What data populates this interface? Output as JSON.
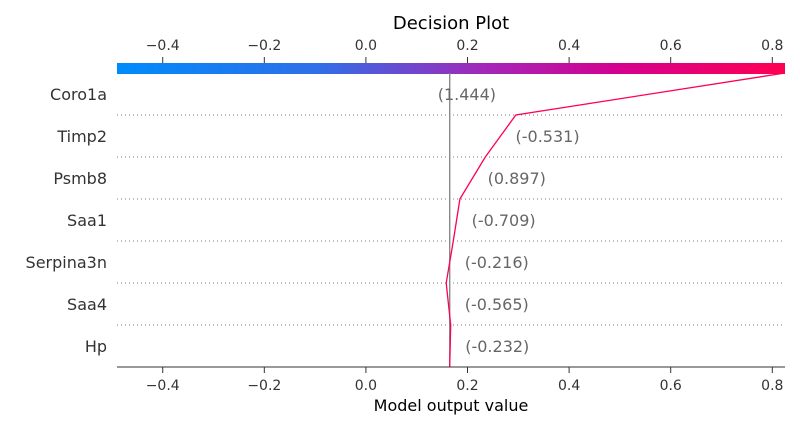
{
  "chart_data": {
    "type": "line",
    "title": "Decision Plot",
    "xlabel": "Model output value",
    "xlim": [
      -0.49,
      0.825
    ],
    "xticks": [
      -0.4,
      -0.2,
      0.0,
      0.2,
      0.4,
      0.6,
      0.8
    ],
    "xtick_labels": [
      "−0.4",
      "−0.2",
      "0.0",
      "0.2",
      "0.4",
      "0.6",
      "0.8"
    ],
    "base_value": 0.165,
    "features": [
      {
        "name": "Coro1a",
        "value_label": "(1.444)"
      },
      {
        "name": "Timp2",
        "value_label": "(-0.531)"
      },
      {
        "name": "Psmb8",
        "value_label": "(0.897)"
      },
      {
        "name": "Saa1",
        "value_label": "(-0.709)"
      },
      {
        "name": "Serpina3n",
        "value_label": "(-0.216)"
      },
      {
        "name": "Saa4",
        "value_label": "(-0.565)"
      },
      {
        "name": "Hp",
        "value_label": "(-0.232)"
      }
    ],
    "path_x": [
      0.825,
      0.295,
      0.235,
      0.185,
      0.172,
      0.158,
      0.167,
      0.165
    ],
    "line_color": "#ff0052",
    "colorbar": [
      "#008bfb",
      "#7a45d6",
      "#c900a1",
      "#ff0052"
    ],
    "grid": "dotted"
  }
}
